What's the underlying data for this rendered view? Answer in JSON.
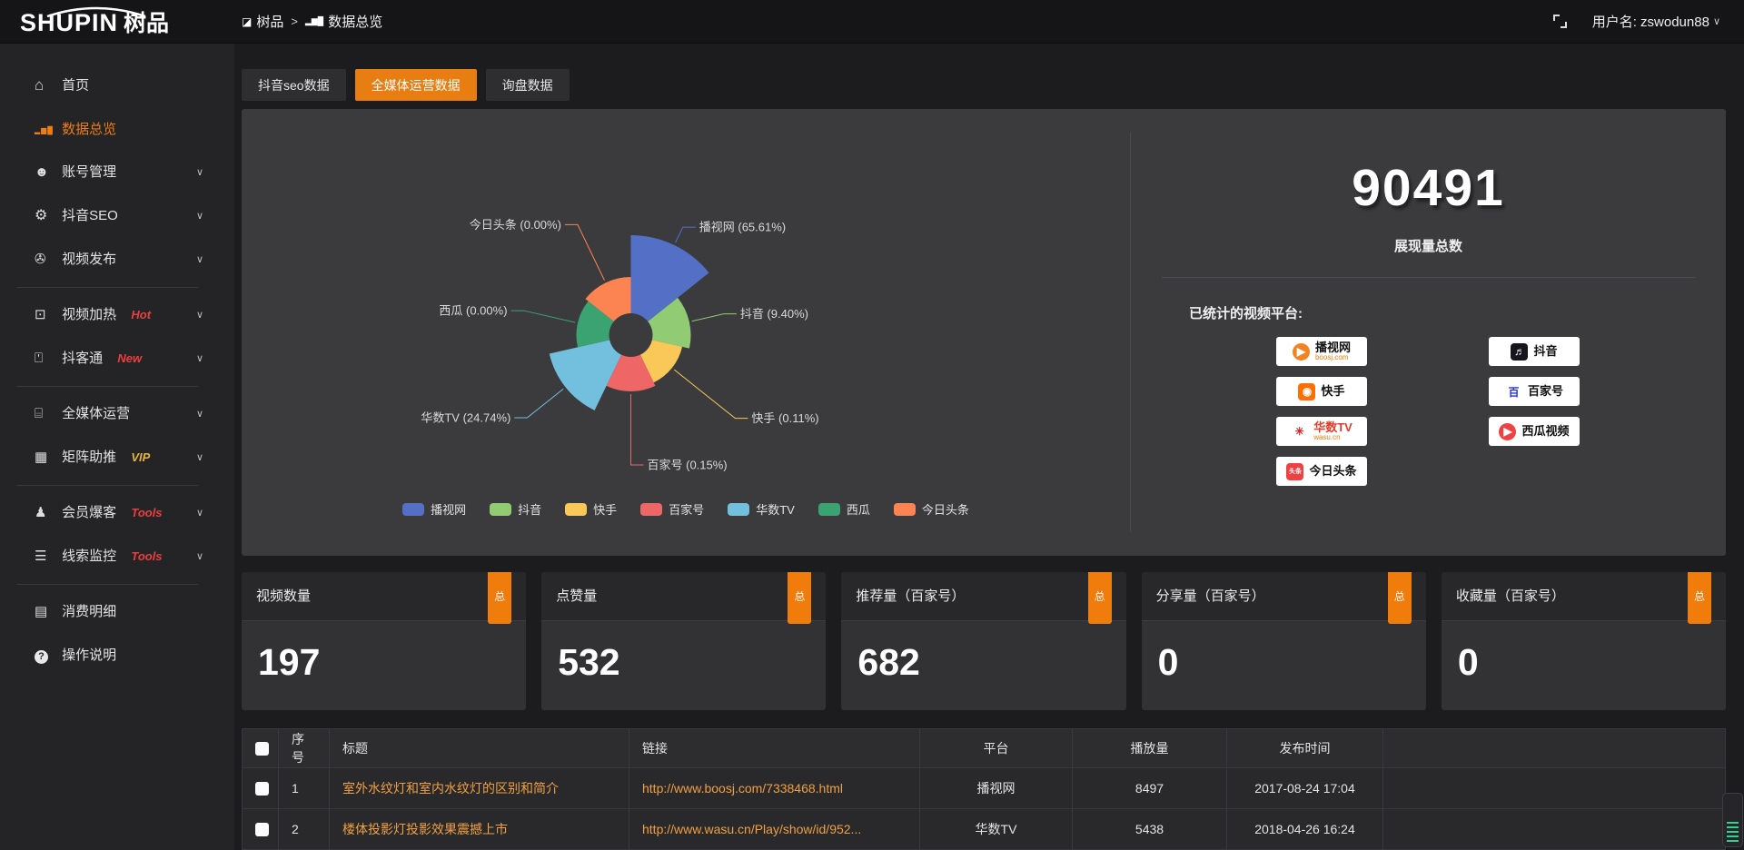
{
  "header": {
    "logo_en": "SHUPIN",
    "logo_cn": "树品",
    "breadcrumb": [
      {
        "label": "树品"
      },
      {
        "label": "数据总览"
      }
    ],
    "breadcrumb_sep": ">",
    "username": "用户名: zswodun88"
  },
  "sidebar": {
    "items": [
      {
        "name": "home",
        "label": "首页",
        "icon": "home-icon"
      },
      {
        "name": "data-overview",
        "label": "数据总览",
        "icon": "chart-bars-icon",
        "active": true
      },
      {
        "name": "account-manage",
        "label": "账号管理",
        "icon": "user-icon",
        "chevron": "∨"
      },
      {
        "name": "douyin-seo",
        "label": "抖音SEO",
        "icon": "gear-icon",
        "chevron": "∨"
      },
      {
        "name": "video-publish",
        "label": "视频发布",
        "icon": "video-icon",
        "chevron": "∨"
      },
      {
        "name": "video-heat",
        "label": "视频加热",
        "icon": "heat-monitor-icon",
        "chevron": "∨",
        "badge": "Hot",
        "badge_color": "#e84040",
        "divider": true
      },
      {
        "name": "douketong",
        "label": "抖客通",
        "icon": "chat-icon",
        "chevron": "∨",
        "badge": "New",
        "badge_color": "#e84040"
      },
      {
        "name": "omni-media",
        "label": "全媒体运营",
        "icon": "monitor-icon",
        "chevron": "∨",
        "divider": true
      },
      {
        "name": "matrix-boost",
        "label": "矩阵助推",
        "icon": "grid-icon",
        "chevron": "∨",
        "badge": "VIP",
        "badge_color": "#e8b33c"
      },
      {
        "name": "member-burst",
        "label": "会员爆客",
        "icon": "member-icon",
        "chevron": "∨",
        "badge": "Tools",
        "badge_color": "#e84040",
        "divider": true
      },
      {
        "name": "lead-monitor",
        "label": "线索监控",
        "icon": "sliders-icon",
        "chevron": "∨",
        "badge": "Tools",
        "badge_color": "#e84040"
      },
      {
        "name": "expense-detail",
        "label": "消费明细",
        "icon": "expense-icon",
        "divider": true
      },
      {
        "name": "help",
        "label": "操作说明",
        "icon": "help-icon"
      }
    ]
  },
  "tabs": [
    {
      "name": "tab-douyin-seo-data",
      "label": "抖音seo数据",
      "active": false
    },
    {
      "name": "tab-omnimedia-data",
      "label": "全媒体运营数据",
      "active": true
    },
    {
      "name": "tab-inquiry-data",
      "label": "询盘数据",
      "active": false
    }
  ],
  "chart_data": {
    "type": "pie",
    "subtype": "nightingale-rose",
    "legend_position": "bottom",
    "inner_radius": 24,
    "series": [
      {
        "name": "播视网",
        "pct": "65.61%",
        "value": 65.61,
        "color": "#5470c6",
        "radius": 110,
        "leader": 22
      },
      {
        "name": "抖音",
        "pct": "9.40%",
        "value": 9.4,
        "color": "#91cc75",
        "radius": 66,
        "leader": 39
      },
      {
        "name": "快手",
        "pct": "0.11%",
        "value": 0.11,
        "color": "#fac858",
        "radius": 58,
        "leader": 89
      },
      {
        "name": "百家号",
        "pct": "0.15%",
        "value": 0.15,
        "color": "#ee6666",
        "radius": 62,
        "leader": 81
      },
      {
        "name": "华数TV",
        "pct": "24.74%",
        "value": 24.74,
        "color": "#73c0de",
        "radius": 92,
        "leader": 54
      },
      {
        "name": "西瓜",
        "pct": "0.00%",
        "value": 0.0,
        "color": "#3ba272",
        "radius": 60,
        "leader": 61
      },
      {
        "name": "今日头条",
        "pct": "0.00%",
        "value": 0.0,
        "color": "#fc8452",
        "radius": 64,
        "leader": 71
      }
    ]
  },
  "summary": {
    "total": "90491",
    "caption": "展现量总数",
    "platforms_label": "已统计的视频平台:",
    "platforms": [
      {
        "name": "播视网",
        "sub": "boosj.com",
        "glyph": "▶",
        "glyph_bg": "#f58220",
        "glyph_color": "#fff",
        "round": true
      },
      {
        "name": "抖音",
        "glyph": "♬",
        "glyph_bg": "#16161c",
        "glyph_color": "#fff"
      },
      {
        "name": "快手",
        "glyph": "◉",
        "glyph_bg": "#ff6f00",
        "glyph_color": "#fff"
      },
      {
        "name": "百家号",
        "glyph": "百",
        "glyph_bg": "transparent",
        "glyph_color": "#2932e1"
      },
      {
        "name": "华数TV",
        "sub": "wasu.cn",
        "glyph": "✳",
        "glyph_bg": "transparent",
        "glyph_color": "#e02020",
        "name_color": "#e03c28"
      },
      {
        "name": "西瓜视频",
        "glyph": "▶",
        "glyph_bg": "#f04142",
        "glyph_color": "#fff",
        "round": true
      },
      {
        "name": "今日头条",
        "glyph": "头条",
        "glyph_bg": "#f04142",
        "glyph_color": "#fff",
        "glyph_small": true
      }
    ]
  },
  "stat_cards": [
    {
      "title": "视频数量",
      "badge": "总",
      "value": "197"
    },
    {
      "title": "点赞量",
      "badge": "总",
      "value": "532"
    },
    {
      "title": "推荐量（百家号）",
      "badge": "总",
      "value": "682"
    },
    {
      "title": "分享量（百家号）",
      "badge": "总",
      "value": "0"
    },
    {
      "title": "收藏量（百家号）",
      "badge": "总",
      "value": "0"
    }
  ],
  "table": {
    "headers": {
      "num": "序号",
      "title": "标题",
      "link": "链接",
      "platform": "平台",
      "plays": "播放量",
      "time": "发布时间"
    },
    "rows": [
      {
        "num": "1",
        "title": "室外水纹灯和室内水纹灯的区别和简介",
        "link": "http://www.boosj.com/7338468.html",
        "platform": "播视网",
        "plays": "8497",
        "time": "2017-08-24 17:04"
      },
      {
        "num": "2",
        "title": "楼体投影灯投影效果震撼上市",
        "link": "http://www.wasu.cn/Play/show/id/952...",
        "platform": "华数TV",
        "plays": "5438",
        "time": "2018-04-26 16:24"
      }
    ]
  },
  "colors": {
    "accent_orange": "#e87d12",
    "badge_orange": "#f07c0c",
    "link_orange": "#efa044",
    "hot_red": "#e84040",
    "vip_yellow": "#e8b33c"
  }
}
